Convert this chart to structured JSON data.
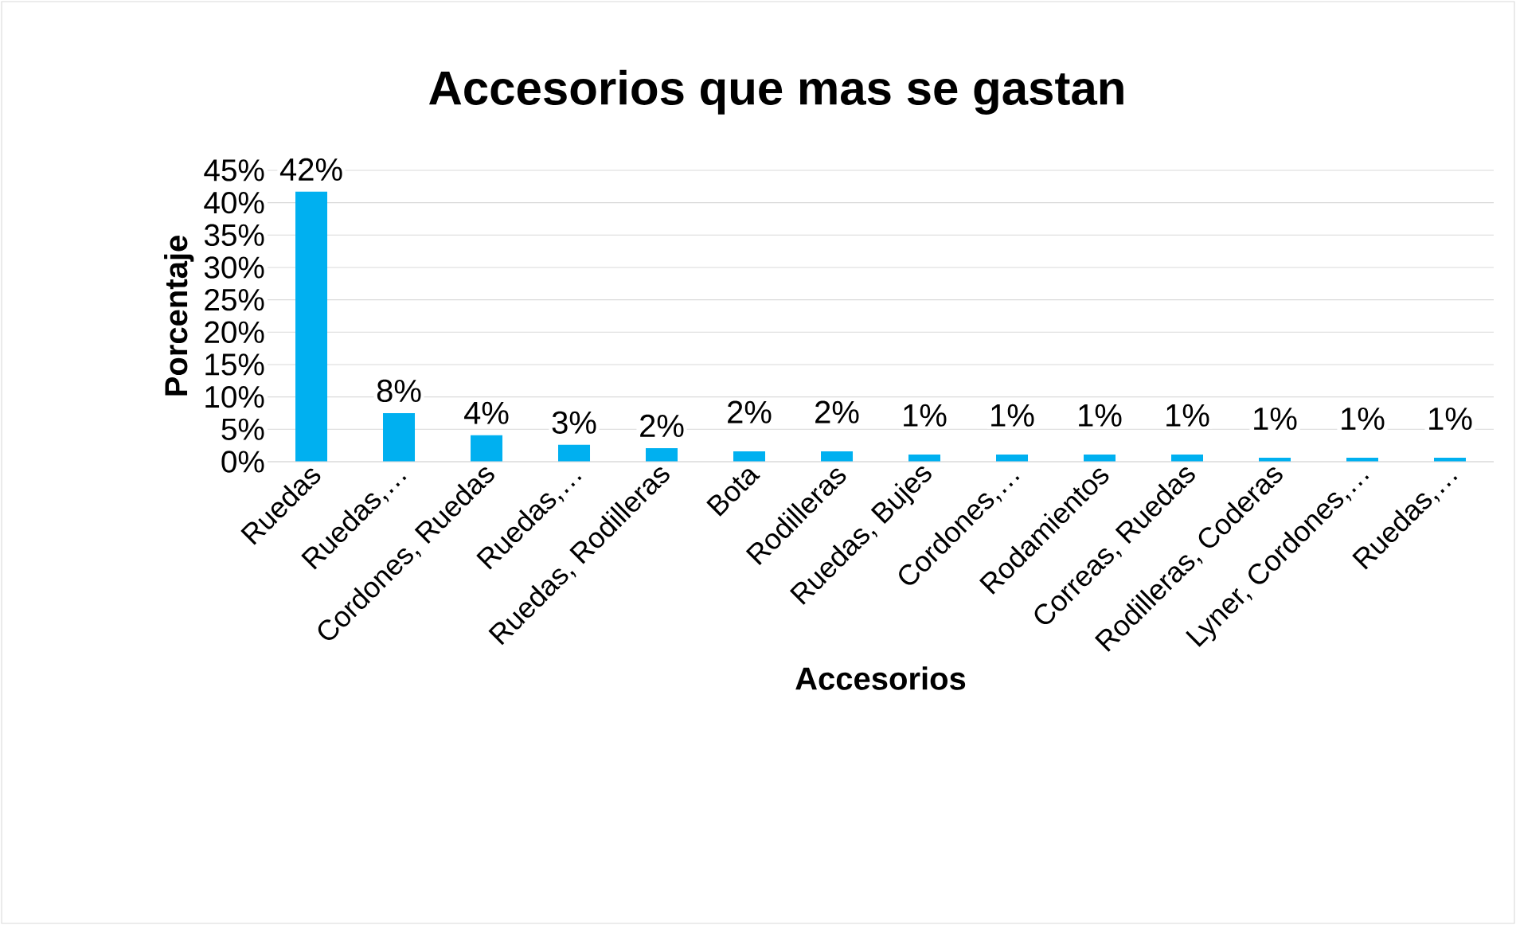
{
  "chart_data": {
    "type": "bar",
    "title": "Accesorios que mas se gastan",
    "xlabel": "Accesorios",
    "ylabel": "Porcentaje",
    "categories": [
      "Ruedas",
      "Ruedas,…",
      "Cordones, Ruedas",
      "Ruedas,…",
      "Ruedas, Rodilleras",
      "Bota",
      "Rodilleras",
      "Ruedas, Bujes",
      "Cordones,…",
      "Rodamientos",
      "Correas, Ruedas",
      "Rodilleras, Coderas",
      "Lyner, Cordones,…",
      "Ruedas,…"
    ],
    "values": [
      41.7,
      7.5,
      4.1,
      2.6,
      2.1,
      1.6,
      1.6,
      1.1,
      1.1,
      1.1,
      1.1,
      0.6,
      0.6,
      0.6
    ],
    "value_labels": [
      "42%",
      "8%",
      "4%",
      "3%",
      "2%",
      "2%",
      "2%",
      "1%",
      "1%",
      "1%",
      "1%",
      "1%",
      "1%",
      "1%"
    ],
    "color": "#00b0f0",
    "ylim": [
      0,
      45
    ],
    "yticks": [
      {
        "value": 0,
        "label": "0%"
      },
      {
        "value": 5,
        "label": "5%"
      },
      {
        "value": 10,
        "label": "10%"
      },
      {
        "value": 15,
        "label": "15%"
      },
      {
        "value": 20,
        "label": "20%"
      },
      {
        "value": 25,
        "label": "25%"
      },
      {
        "value": 30,
        "label": "30%"
      },
      {
        "value": 35,
        "label": "35%"
      },
      {
        "value": 40,
        "label": "40%"
      },
      {
        "value": 45,
        "label": "45%"
      }
    ],
    "grid": "y"
  }
}
